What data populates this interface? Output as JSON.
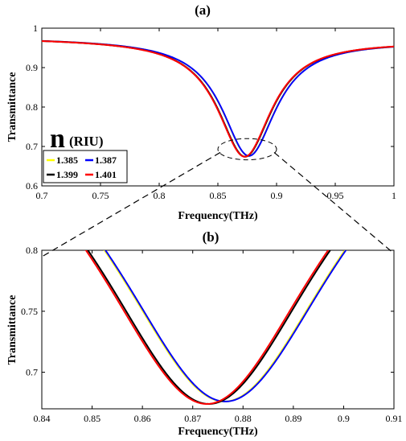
{
  "chart_data": [
    {
      "panel_label": "(a)",
      "type": "line",
      "xlabel": "Frequency(THz)",
      "ylabel": "Transmittance",
      "xlim": [
        0.7,
        1.0
      ],
      "ylim": [
        0.6,
        1.0
      ],
      "xticks": [
        "0.7",
        "0.75",
        "0.8",
        "0.85",
        "0.9",
        "0.95",
        "1"
      ],
      "yticks": [
        "0.6",
        "0.7",
        "0.8",
        "0.9",
        "1"
      ],
      "legend": {
        "title_symbol": "n",
        "title_unit": "(RIU)",
        "placement": "lower-left",
        "columns": 2
      },
      "series": [
        {
          "name": "1.385",
          "color": "#ffff00",
          "resonance_x": 0.8763,
          "min_y": 0.676
        },
        {
          "name": "1.387",
          "color": "#0000ff",
          "resonance_x": 0.8765,
          "min_y": 0.676
        },
        {
          "name": "1.399",
          "color": "#000000",
          "resonance_x": 0.8732,
          "min_y": 0.674
        },
        {
          "name": "1.401",
          "color": "#ff0000",
          "resonance_x": 0.8728,
          "min_y": 0.674
        }
      ],
      "curve_model": {
        "baseline_left": 0.975,
        "baseline_right": 0.967,
        "half_width": 0.028
      },
      "zoom_ellipse": {
        "center_x": 0.875,
        "center_y": 0.693,
        "rx": 0.025,
        "ry": 0.027
      }
    },
    {
      "panel_label": "(b)",
      "type": "line",
      "xlabel": "Frequency(THz)",
      "ylabel": "Transmittance",
      "xlim": [
        0.84,
        0.91
      ],
      "ylim": [
        0.67,
        0.8
      ],
      "xticks": [
        "0.84",
        "0.85",
        "0.86",
        "0.87",
        "0.88",
        "0.89",
        "0.9",
        "0.91"
      ],
      "yticks": [
        "0.7",
        "0.75",
        "0.8"
      ],
      "series": [
        {
          "name": "1.385",
          "color": "#ffff00",
          "resonance_x": 0.8763,
          "min_y": 0.676
        },
        {
          "name": "1.387",
          "color": "#0000ff",
          "resonance_x": 0.8765,
          "min_y": 0.676
        },
        {
          "name": "1.399",
          "color": "#000000",
          "resonance_x": 0.8732,
          "min_y": 0.674
        },
        {
          "name": "1.401",
          "color": "#ff0000",
          "resonance_x": 0.8728,
          "min_y": 0.674
        }
      ]
    }
  ]
}
